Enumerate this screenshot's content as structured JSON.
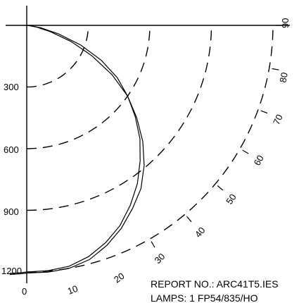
{
  "chart_data": {
    "type": "polar-candela",
    "vertical_scale": {
      "ticks": [
        300,
        600,
        900,
        1200
      ],
      "range": [
        0,
        1200
      ]
    },
    "bottom_labels": [
      "0",
      "10",
      "20"
    ],
    "angle_labels": [
      "30",
      "40",
      "50",
      "60",
      "70",
      "80",
      "90"
    ],
    "angle_values": [
      30,
      40,
      50,
      60,
      70,
      80,
      90
    ],
    "grid_circles": [
      300,
      600,
      900,
      1200
    ],
    "series": [
      {
        "angles_deg": [
          0,
          5,
          10,
          15,
          20,
          25,
          30,
          35,
          40,
          45,
          50,
          55,
          60,
          65,
          70,
          75,
          80,
          85,
          90
        ],
        "values": [
          1205,
          1205,
          1200,
          1180,
          1140,
          1090,
          1030,
          970,
          890,
          800,
          700,
          600,
          480,
          350,
          230,
          120,
          50,
          10,
          0
        ]
      },
      {
        "angles_deg": [
          0,
          5,
          10,
          15,
          20,
          25,
          30,
          35,
          40,
          45,
          50,
          55,
          60,
          65,
          70,
          75,
          80,
          85,
          90
        ],
        "values": [
          1200,
          1198,
          1190,
          1165,
          1125,
          1075,
          1010,
          940,
          860,
          780,
          690,
          600,
          510,
          400,
          280,
          160,
          70,
          15,
          0
        ]
      }
    ],
    "annotations": {
      "report": "REPORT NO.: ARC41T5.IES",
      "lamps": "LAMPS: 1 FP54/835/HO"
    }
  }
}
